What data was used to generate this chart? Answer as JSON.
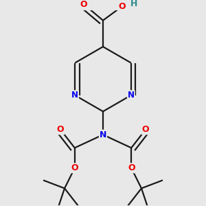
{
  "background_color": "#e8e8e8",
  "atom_colors": {
    "C": "#1a1a1a",
    "N": "#0000ee",
    "O": "#ee0000",
    "H": "#2e8b8b"
  },
  "bond_color": "#1a1a1a",
  "bond_width": 1.6,
  "figsize": [
    3.0,
    3.0
  ],
  "dpi": 100
}
